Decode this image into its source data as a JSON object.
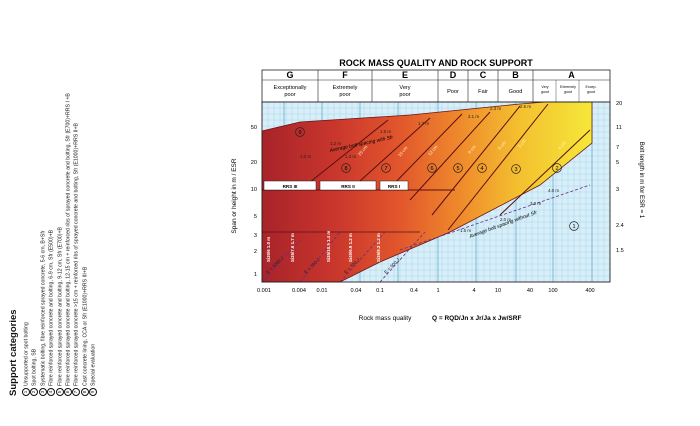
{
  "title": "ROCK MASS QUALITY AND ROCK SUPPORT",
  "classes": [
    {
      "letter": "G",
      "label": "Exceptionally poor"
    },
    {
      "letter": "F",
      "label": "Extremely poor"
    },
    {
      "letter": "E",
      "label": "Very poor"
    },
    {
      "letter": "D",
      "label": "Poor"
    },
    {
      "letter": "C",
      "label": "Fair"
    },
    {
      "letter": "B",
      "label": "Good"
    },
    {
      "letter": "A",
      "label": "Very good / Extremely good / Excep. good"
    }
  ],
  "class_labels_small": [
    "Very good",
    "Extremely good",
    "Excep. good"
  ],
  "y_axis_left": "Span or height in m / ESR",
  "y_axis_right": "Bolt length in m for ESR = 1",
  "x_axis_label": "Rock mass quality",
  "formula": "Q = RQD/Jn x Jr/Ja x Jw/SRF",
  "x_ticks": [
    "0.001",
    "0.004",
    "0.01",
    "0.04",
    "0.1",
    "0.4",
    "1",
    "4",
    "10",
    "40",
    "100",
    "400"
  ],
  "y_ticks_left": [
    "1",
    "2",
    "3",
    "5",
    "10",
    "20",
    "50"
  ],
  "y_ticks_right": [
    "1.5",
    "2.4",
    "3",
    "5",
    "7",
    "11",
    "20"
  ],
  "annotations": {
    "avg_with": "Average bolt spacing with Sfr",
    "avg_without": "Average bolt spacing without Sfr",
    "rrs": [
      "RRS III",
      "RRS II",
      "RRS I"
    ],
    "energy": [
      "E = 1000 J",
      "E = 700 J",
      "E = 700 J",
      "E = 500 J"
    ],
    "spacings": [
      "1.0 m",
      "1.2 m",
      "1.3 m",
      "1.5 m",
      "1.7 m",
      "2.1 m",
      "2.3 m",
      "2.5 m",
      "1.6 m",
      "2.0 m",
      "3.0 m",
      "4.0 m"
    ],
    "thickness": [
      "25 cm",
      "15 cm",
      "12 cm",
      "9 cm",
      "6 cm",
      "5 cm",
      "4 cm"
    ],
    "vertical": [
      "Si30/6 1.0 m",
      "Si35/7.6 1.7 m",
      "Si35/10.5 1.4 m",
      "Si40/6.9 1.2 m",
      "Si35/9.3 1.2 m"
    ],
    "cats": [
      "1",
      "2",
      "3",
      "4",
      "5",
      "6",
      "7",
      "8",
      "9"
    ]
  },
  "legend": {
    "title": "Support categories",
    "items": [
      "Unsupported or spot bolting",
      "Spot bolting, SB",
      "Systematic bolting, fibre reinforced sprayed concrete, 5-6 cm, B+Sfr",
      "Fibre reinforced sprayed concrete and bolting, 6-9 cm, Sfr (E500)+B",
      "Fibre reinforced sprayed concrete and bolting, 9-12 cm, Sfr (E700)+B",
      "Fibre reinforced sprayed concrete and bolting, 12-15 cm + reinforced ribs of sprayed concrete and bolting, Sfr (E700)+RRS I +B",
      "Fibre reinforced sprayed concrete >15 cm + reinforced ribs of sprayed concrete and bolting, Sfr (E1000)+RRS II+B",
      "Cast concrete lining, CCA or Sfr (E1000)+RRS III+B",
      "Special evaluation"
    ]
  }
}
